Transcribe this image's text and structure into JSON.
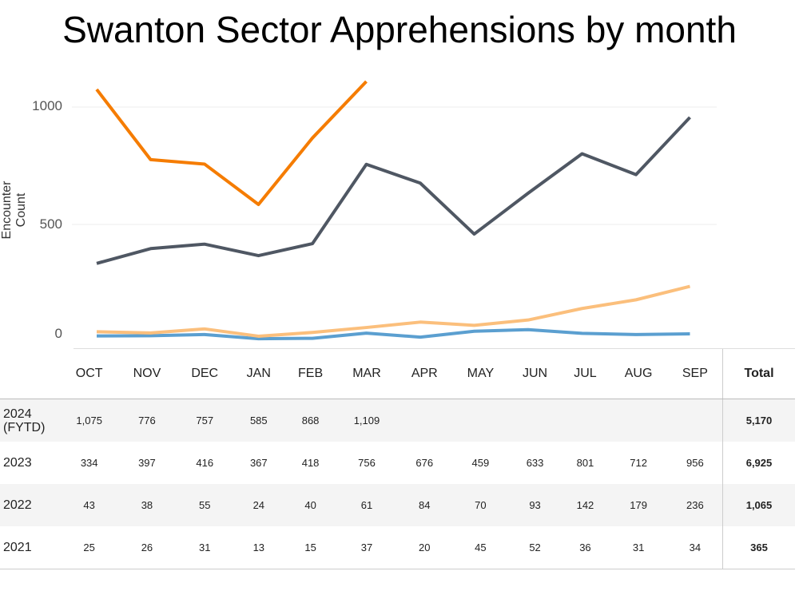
{
  "chart_data": {
    "type": "line",
    "title": "Swanton Sector Apprehensions by month",
    "xlabel": "",
    "ylabel": "Encounter Count",
    "yticks": [
      "0",
      "500",
      "1000"
    ],
    "ylim": [
      0,
      1150
    ],
    "grid": true,
    "categories": [
      "OCT",
      "NOV",
      "DEC",
      "JAN",
      "FEB",
      "MAR",
      "APR",
      "MAY",
      "JUN",
      "JUL",
      "AUG",
      "SEP"
    ],
    "series": [
      {
        "name": "2024 (FYTD)",
        "color": "#f57c00",
        "values": [
          1075,
          776,
          757,
          585,
          868,
          1109,
          null,
          null,
          null,
          null,
          null,
          null
        ],
        "labels": [
          "1,075",
          "776",
          "757",
          "585",
          "868",
          "1,109",
          "",
          "",
          "",
          "",
          "",
          ""
        ],
        "total": "5,170"
      },
      {
        "name": "2023",
        "color": "#4f5763",
        "values": [
          334,
          397,
          416,
          367,
          418,
          756,
          676,
          459,
          633,
          801,
          712,
          956
        ],
        "labels": [
          "334",
          "397",
          "416",
          "367",
          "418",
          "756",
          "676",
          "459",
          "633",
          "801",
          "712",
          "956"
        ],
        "total": "6,925"
      },
      {
        "name": "2022",
        "color": "#fbbf7c",
        "values": [
          43,
          38,
          55,
          24,
          40,
          61,
          84,
          70,
          93,
          142,
          179,
          236
        ],
        "labels": [
          "43",
          "38",
          "55",
          "24",
          "40",
          "61",
          "84",
          "70",
          "93",
          "142",
          "179",
          "236"
        ],
        "total": "1,065"
      },
      {
        "name": "2021",
        "color": "#5b9fd0",
        "values": [
          25,
          26,
          31,
          13,
          15,
          37,
          20,
          45,
          52,
          36,
          31,
          34
        ],
        "labels": [
          "25",
          "26",
          "31",
          "13",
          "15",
          "37",
          "20",
          "45",
          "52",
          "36",
          "31",
          "34"
        ],
        "total": "365"
      }
    ],
    "total_header": "Total"
  }
}
